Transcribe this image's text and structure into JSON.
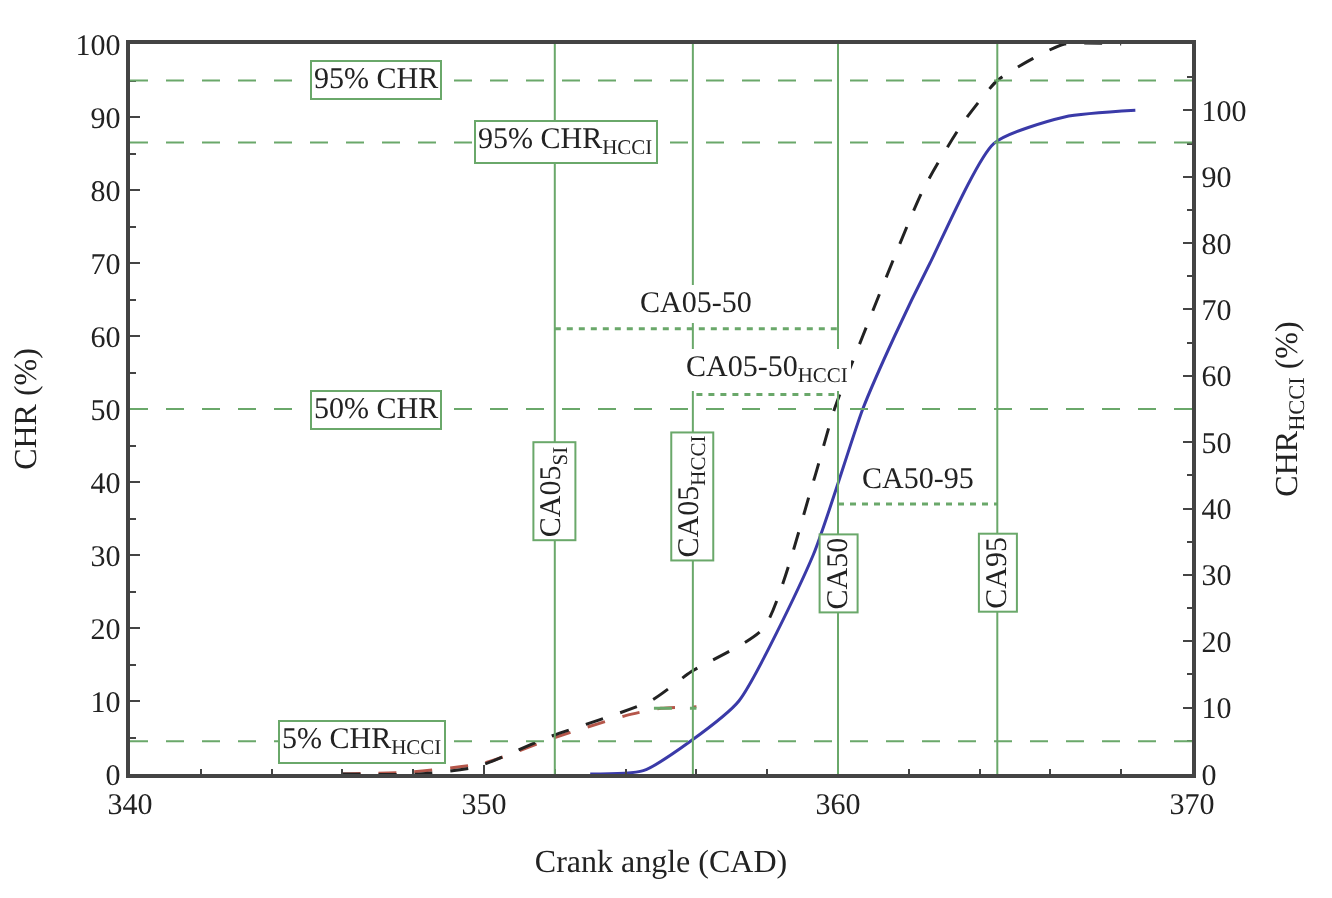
{
  "chart_data": {
    "type": "line",
    "xlabel": "Crank angle (CAD)",
    "ylabel": "CHR (%)",
    "y2label": "CHR$_{HCCI}$ (%)",
    "xlim": [
      340,
      370
    ],
    "xticks": [
      340,
      350,
      360,
      370
    ],
    "ylim": [
      0,
      100
    ],
    "yticks": [
      0,
      10,
      20,
      30,
      40,
      50,
      60,
      70,
      80,
      90,
      100
    ],
    "y2lim": [
      0,
      110
    ],
    "y2ticks": [
      0,
      10,
      20,
      30,
      40,
      50,
      60,
      70,
      80,
      90,
      100
    ],
    "marker": "none",
    "series": [
      {
        "color": "#b5564a",
        "line_style": "dashed",
        "x": [
          346,
          348,
          350,
          352,
          354,
          355,
          356
        ],
        "values": [
          0,
          0.3,
          1.5,
          5,
          8,
          9,
          9.2
        ]
      },
      {
        "color": "#222222",
        "line_style": "dashed",
        "x": [
          346,
          348.2,
          349.8,
          351.8,
          354.7,
          355.85,
          357.9,
          359.3,
          359.9,
          360.7,
          362.4,
          363.5,
          364.5,
          365.5,
          366.4,
          368
        ],
        "values": [
          0,
          0,
          1,
          5,
          10,
          14,
          20,
          40,
          50,
          60,
          80,
          89,
          95,
          98,
          100,
          100
        ]
      },
      {
        "color": "#3a3aa8",
        "line_style": "solid",
        "axis": "y2",
        "x": [
          353,
          354.5,
          355.85,
          357.2,
          359.3,
          360.7,
          361.6,
          362.6,
          364.4,
          366.4,
          368.4
        ],
        "values": [
          0,
          0.5,
          5,
          11,
          33,
          55,
          66,
          77,
          95,
          99,
          100
        ]
      },
      {
        "color": "#6aa86a",
        "line_style": "dashed",
        "x": [
          354.8,
          356
        ],
        "values": [
          9,
          9
        ]
      },
      {
        "color": "#6aa86a",
        "line_style": "dotted",
        "x": [
          352,
          360
        ],
        "values": [
          61,
          61
        ]
      },
      {
        "color": "#6aa86a",
        "line_style": "dotted",
        "x": [
          356,
          360
        ],
        "values": [
          52,
          52
        ]
      },
      {
        "color": "#6aa86a",
        "line_style": "dotted",
        "x": [
          360,
          364.5
        ],
        "values": [
          37,
          37
        ]
      }
    ],
    "ref_lines": [
      {
        "axis": "y",
        "value": 95,
        "label": "95% CHR",
        "color": "#6aa86a",
        "line_style": "dashed"
      },
      {
        "axis": "y",
        "value": 86.5,
        "label": "95% CHR$_{HCCI}$",
        "color": "#6aa86a",
        "line_style": "dashed"
      },
      {
        "axis": "y",
        "value": 50,
        "label": "50% CHR",
        "color": "#6aa86a",
        "line_style": "dashed"
      },
      {
        "axis": "y",
        "value": 4.5,
        "label": "5% CHR$_{HCCI}$",
        "color": "#6aa86a",
        "line_style": "dashed"
      },
      {
        "axis": "x",
        "value": 352,
        "label": "CA05$_{SI}$",
        "color": "#6aa86a",
        "line_style": "solid"
      },
      {
        "axis": "x",
        "value": 355.9,
        "label": "CA05$_{HCCI}$",
        "color": "#6aa86a",
        "line_style": "solid"
      },
      {
        "axis": "x",
        "value": 360,
        "label": "CA50",
        "color": "#6aa86a",
        "line_style": "solid"
      },
      {
        "axis": "x",
        "value": 364.5,
        "label": "CA95",
        "color": "#6aa86a",
        "line_style": "solid"
      }
    ],
    "annotations": [
      {
        "text": "CA05-50",
        "x": 356,
        "y": 61
      },
      {
        "text": "CA05-50$_{HCCI}$",
        "x": 358,
        "y": 52
      },
      {
        "text": "CA50-95",
        "x": 362.25,
        "y": 37
      }
    ]
  }
}
